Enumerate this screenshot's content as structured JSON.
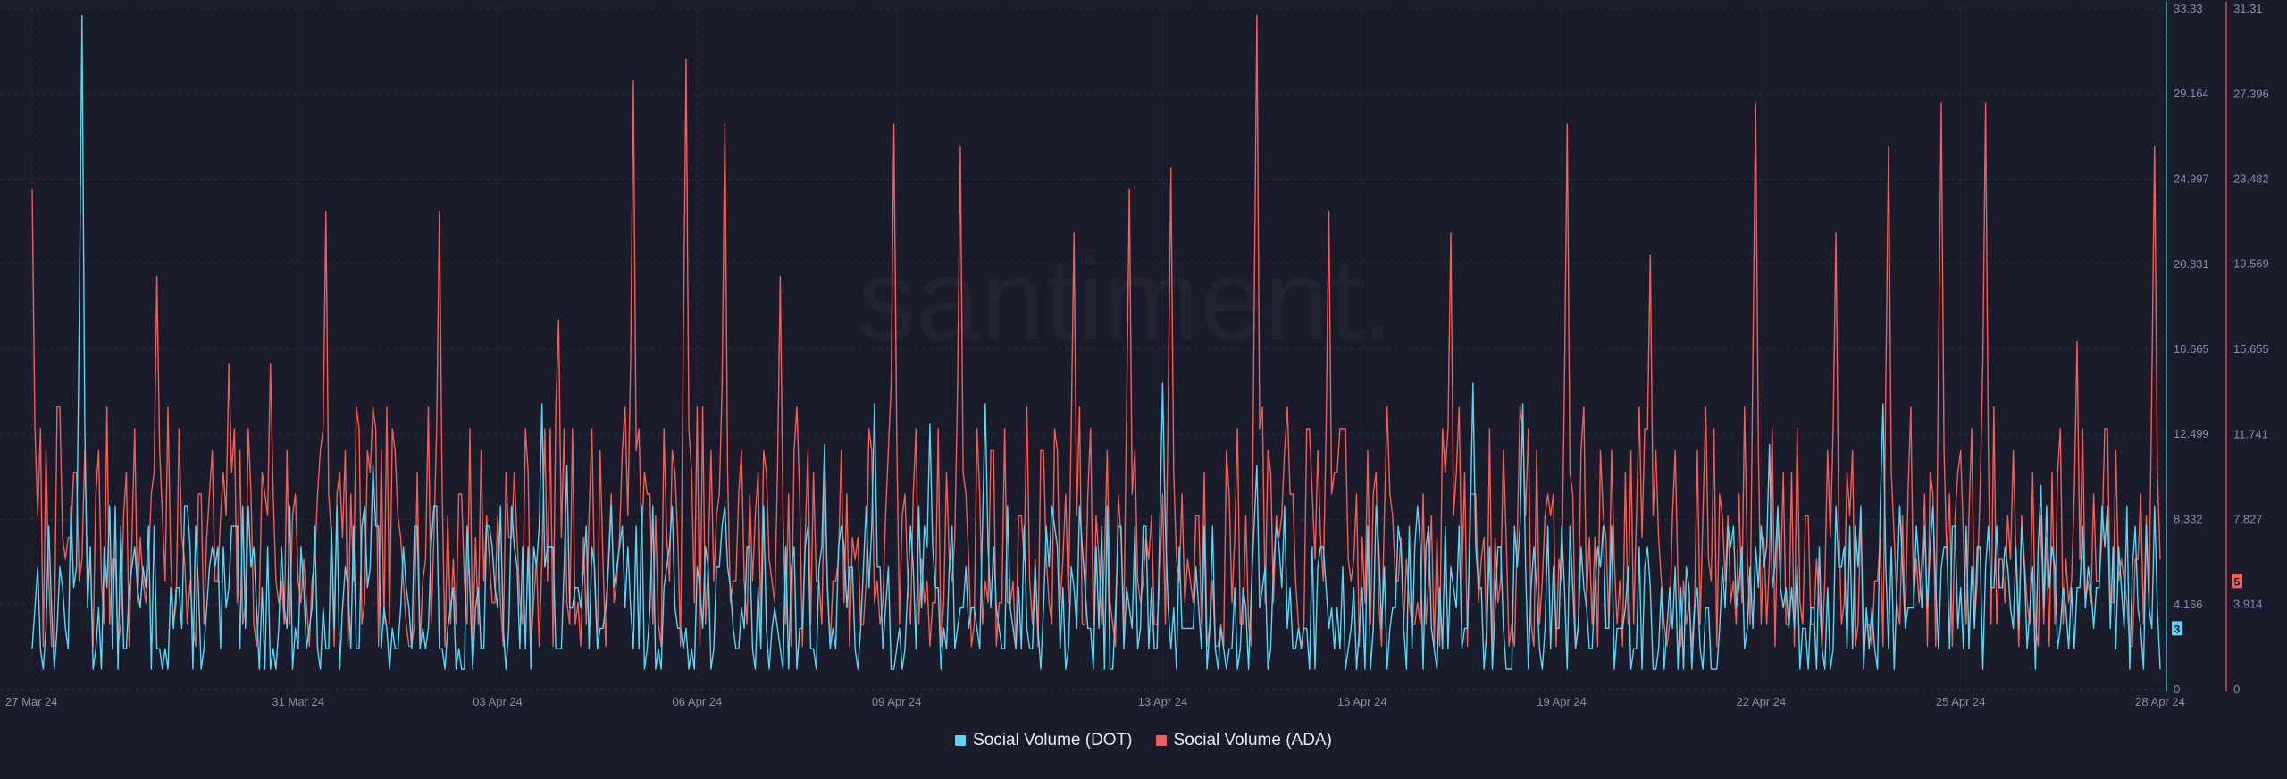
{
  "watermark": "santiment.",
  "colors": {
    "background": "#1a1b2b",
    "grid": "#2a2c3e",
    "axis_text": "#8a8ea6",
    "dot": "#5fd4f2",
    "ada": "#f0605b"
  },
  "legend": {
    "dot_label": "Social Volume (DOT)",
    "ada_label": "Social Volume (ADA)"
  },
  "chart_data": {
    "type": "line",
    "title": "",
    "x_ticks": [
      "27 Mar 24",
      "31 Mar 24",
      "03 Apr 24",
      "06 Apr 24",
      "09 Apr 24",
      "13 Apr 24",
      "16 Apr 24",
      "19 Apr 24",
      "22 Apr 24",
      "25 Apr 24",
      "28 Apr 24"
    ],
    "x_range": [
      "2024-03-27",
      "2024-04-28"
    ],
    "samples_per_day": 24,
    "grid": true,
    "legend_position": "bottom-center",
    "y_axis_dot": {
      "min": 0,
      "max": 33.33,
      "ticks": [
        "0",
        "4.166",
        "8.332",
        "12.499",
        "16.665",
        "20.831",
        "24.997",
        "29.164",
        "33.33"
      ],
      "current_value": "3"
    },
    "y_axis_ada": {
      "min": 0,
      "max": 31.31,
      "ticks": [
        "0",
        "3.914",
        "7.827",
        "11.741",
        "15.655",
        "19.569",
        "23.482",
        "27.396",
        "31.31"
      ],
      "current_value": "5"
    },
    "series": [
      {
        "name": "Social Volume (DOT)",
        "axis": "left",
        "base_range": [
          1,
          9
        ],
        "peaks": [
          {
            "date": "2024-03-27",
            "hour": 18,
            "value": 33
          },
          {
            "date": "2024-04-01",
            "hour": 3,
            "value": 11
          },
          {
            "date": "2024-04-03",
            "hour": 16,
            "value": 14
          },
          {
            "date": "2024-04-04",
            "hour": 1,
            "value": 11
          },
          {
            "date": "2024-04-07",
            "hour": 22,
            "value": 12
          },
          {
            "date": "2024-04-08",
            "hour": 16,
            "value": 14
          },
          {
            "date": "2024-04-09",
            "hour": 12,
            "value": 13
          },
          {
            "date": "2024-04-10",
            "hour": 8,
            "value": 14
          },
          {
            "date": "2024-04-13",
            "hour": 0,
            "value": 15
          },
          {
            "date": "2024-04-14",
            "hour": 10,
            "value": 11
          },
          {
            "date": "2024-04-17",
            "hour": 16,
            "value": 15
          },
          {
            "date": "2024-04-18",
            "hour": 10,
            "value": 14
          },
          {
            "date": "2024-04-22",
            "hour": 3,
            "value": 12
          },
          {
            "date": "2024-04-23",
            "hour": 20,
            "value": 14
          },
          {
            "date": "2024-04-26",
            "hour": 5,
            "value": 10
          }
        ]
      },
      {
        "name": "Social Volume (ADA)",
        "axis": "right",
        "base_range": [
          2,
          13
        ],
        "peaks": [
          {
            "date": "2024-03-27",
            "hour": 0,
            "value": 23
          },
          {
            "date": "2024-03-28",
            "hour": 21,
            "value": 19
          },
          {
            "date": "2024-03-29",
            "hour": 23,
            "value": 15
          },
          {
            "date": "2024-03-30",
            "hour": 14,
            "value": 15
          },
          {
            "date": "2024-03-31",
            "hour": 10,
            "value": 22
          },
          {
            "date": "2024-04-02",
            "hour": 3,
            "value": 22
          },
          {
            "date": "2024-04-03",
            "hour": 22,
            "value": 17
          },
          {
            "date": "2024-04-05",
            "hour": 1,
            "value": 28
          },
          {
            "date": "2024-04-05",
            "hour": 20,
            "value": 29
          },
          {
            "date": "2024-04-06",
            "hour": 10,
            "value": 26
          },
          {
            "date": "2024-04-07",
            "hour": 6,
            "value": 19
          },
          {
            "date": "2024-04-08",
            "hour": 23,
            "value": 26
          },
          {
            "date": "2024-04-09",
            "hour": 23,
            "value": 25
          },
          {
            "date": "2024-04-11",
            "hour": 16,
            "value": 21
          },
          {
            "date": "2024-04-12",
            "hour": 12,
            "value": 23
          },
          {
            "date": "2024-04-13",
            "hour": 3,
            "value": 24
          },
          {
            "date": "2024-04-14",
            "hour": 10,
            "value": 31
          },
          {
            "date": "2024-04-15",
            "hour": 12,
            "value": 22
          },
          {
            "date": "2024-04-17",
            "hour": 8,
            "value": 21
          },
          {
            "date": "2024-04-19",
            "hour": 2,
            "value": 26
          },
          {
            "date": "2024-04-20",
            "hour": 8,
            "value": 20
          },
          {
            "date": "2024-04-21",
            "hour": 22,
            "value": 27
          },
          {
            "date": "2024-04-23",
            "hour": 3,
            "value": 21
          },
          {
            "date": "2024-04-23",
            "hour": 22,
            "value": 25
          },
          {
            "date": "2024-04-24",
            "hour": 17,
            "value": 27
          },
          {
            "date": "2024-04-25",
            "hour": 9,
            "value": 27
          },
          {
            "date": "2024-04-26",
            "hour": 18,
            "value": 16
          },
          {
            "date": "2024-04-27",
            "hour": 22,
            "value": 25
          }
        ]
      }
    ]
  }
}
